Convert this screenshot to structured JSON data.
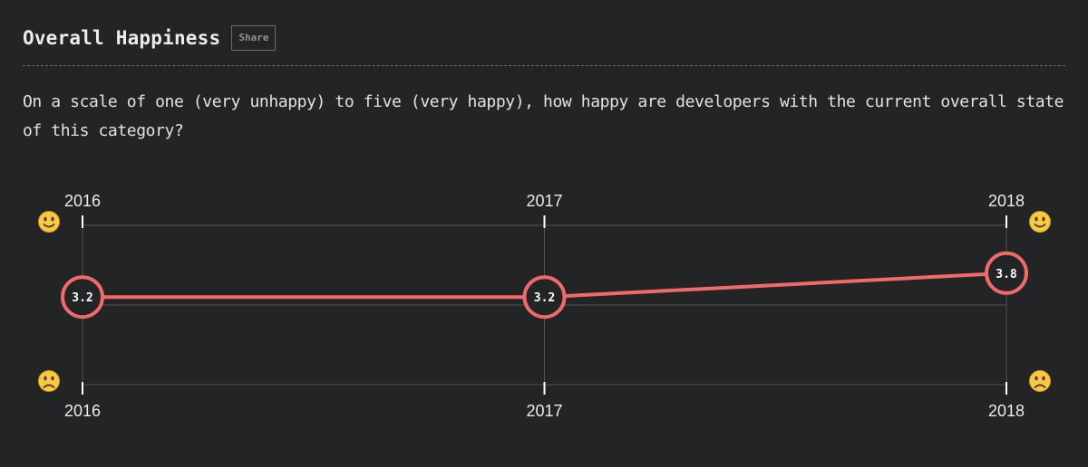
{
  "header": {
    "title": "Overall Happiness",
    "share_label": "Share"
  },
  "question": "On a scale of one (very unhappy) to five (very happy), how happy are developers with the current overall state of this category?",
  "icons": {
    "happy": "slightly-smiling-face-icon",
    "unhappy": "frowning-face-icon"
  },
  "colors": {
    "line": "#f06a6a",
    "background": "#222426",
    "grid": "#505356",
    "tick": "#ffffff"
  },
  "chart_data": {
    "type": "line",
    "x": [
      "2016",
      "2017",
      "2018"
    ],
    "series": [
      {
        "values": [
          3.2,
          3.2,
          3.8
        ]
      }
    ],
    "point_labels": [
      "3.2",
      "3.2",
      "3.8"
    ],
    "ylim": [
      1,
      5
    ],
    "top_axis_labels": [
      "2016",
      "2017",
      "2018"
    ],
    "bottom_axis_labels": [
      "2016",
      "2017",
      "2018"
    ],
    "grid": true,
    "legend": "none"
  }
}
